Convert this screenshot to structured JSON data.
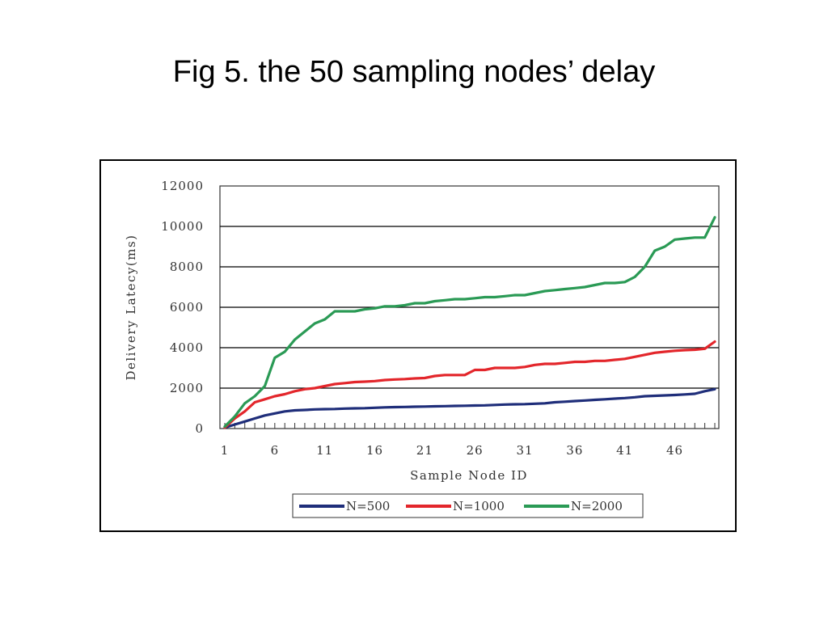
{
  "slide": {
    "title": "Fig 5. the 50 sampling nodes’ delay"
  },
  "chart_data": {
    "type": "line",
    "title": "",
    "xlabel": "Sample Node ID",
    "ylabel": "Delivery Latecy(ms)",
    "xlim": [
      1,
      50
    ],
    "ylim": [
      0,
      12000
    ],
    "x_ticks": [
      "1",
      "6",
      "11",
      "16",
      "21",
      "26",
      "31",
      "36",
      "41",
      "46"
    ],
    "y_ticks": [
      "0",
      "2000",
      "4000",
      "6000",
      "8000",
      "10000",
      "12000"
    ],
    "grid": "horizontal",
    "legend_position": "bottom",
    "series": [
      {
        "name": "N=500",
        "color": "#1f2e7a",
        "x": [
          1,
          2,
          3,
          4,
          5,
          6,
          7,
          8,
          9,
          10,
          11,
          12,
          13,
          14,
          15,
          16,
          17,
          18,
          19,
          20,
          21,
          22,
          23,
          24,
          25,
          26,
          27,
          28,
          29,
          30,
          31,
          32,
          33,
          34,
          35,
          36,
          37,
          38,
          39,
          40,
          41,
          42,
          43,
          44,
          45,
          46,
          47,
          48,
          49,
          50
        ],
        "values": [
          50,
          200,
          350,
          500,
          650,
          750,
          850,
          900,
          920,
          950,
          960,
          970,
          990,
          1000,
          1010,
          1030,
          1050,
          1060,
          1070,
          1080,
          1090,
          1100,
          1110,
          1120,
          1130,
          1140,
          1150,
          1170,
          1190,
          1200,
          1210,
          1230,
          1250,
          1300,
          1330,
          1360,
          1390,
          1420,
          1450,
          1480,
          1510,
          1550,
          1600,
          1620,
          1640,
          1660,
          1690,
          1720,
          1850,
          1950
        ]
      },
      {
        "name": "N=1000",
        "color": "#e3262b",
        "x": [
          1,
          2,
          3,
          4,
          5,
          6,
          7,
          8,
          9,
          10,
          11,
          12,
          13,
          14,
          15,
          16,
          17,
          18,
          19,
          20,
          21,
          22,
          23,
          24,
          25,
          26,
          27,
          28,
          29,
          30,
          31,
          32,
          33,
          34,
          35,
          36,
          37,
          38,
          39,
          40,
          41,
          42,
          43,
          44,
          45,
          46,
          47,
          48,
          49,
          50
        ],
        "values": [
          50,
          500,
          850,
          1300,
          1450,
          1600,
          1700,
          1850,
          1950,
          2000,
          2100,
          2200,
          2250,
          2300,
          2320,
          2350,
          2400,
          2430,
          2450,
          2480,
          2500,
          2600,
          2650,
          2650,
          2650,
          2900,
          2900,
          3000,
          3000,
          3000,
          3050,
          3150,
          3200,
          3200,
          3250,
          3300,
          3300,
          3350,
          3350,
          3400,
          3450,
          3550,
          3650,
          3750,
          3800,
          3850,
          3880,
          3900,
          3950,
          4300
        ]
      },
      {
        "name": "N=2000",
        "color": "#2a9a55",
        "x": [
          1,
          2,
          3,
          4,
          5,
          6,
          7,
          8,
          9,
          10,
          11,
          12,
          13,
          14,
          15,
          16,
          17,
          18,
          19,
          20,
          21,
          22,
          23,
          24,
          25,
          26,
          27,
          28,
          29,
          30,
          31,
          32,
          33,
          34,
          35,
          36,
          37,
          38,
          39,
          40,
          41,
          42,
          43,
          44,
          45,
          46,
          47,
          48,
          49,
          50
        ],
        "values": [
          100,
          600,
          1250,
          1600,
          2100,
          3500,
          3800,
          4400,
          4800,
          5200,
          5400,
          5800,
          5800,
          5800,
          5900,
          5950,
          6050,
          6050,
          6100,
          6200,
          6200,
          6300,
          6350,
          6400,
          6400,
          6450,
          6500,
          6500,
          6550,
          6600,
          6600,
          6700,
          6800,
          6850,
          6900,
          6950,
          7000,
          7100,
          7200,
          7200,
          7250,
          7500,
          8000,
          8800,
          9000,
          9350,
          9400,
          9450,
          9450,
          10450
        ]
      }
    ]
  }
}
